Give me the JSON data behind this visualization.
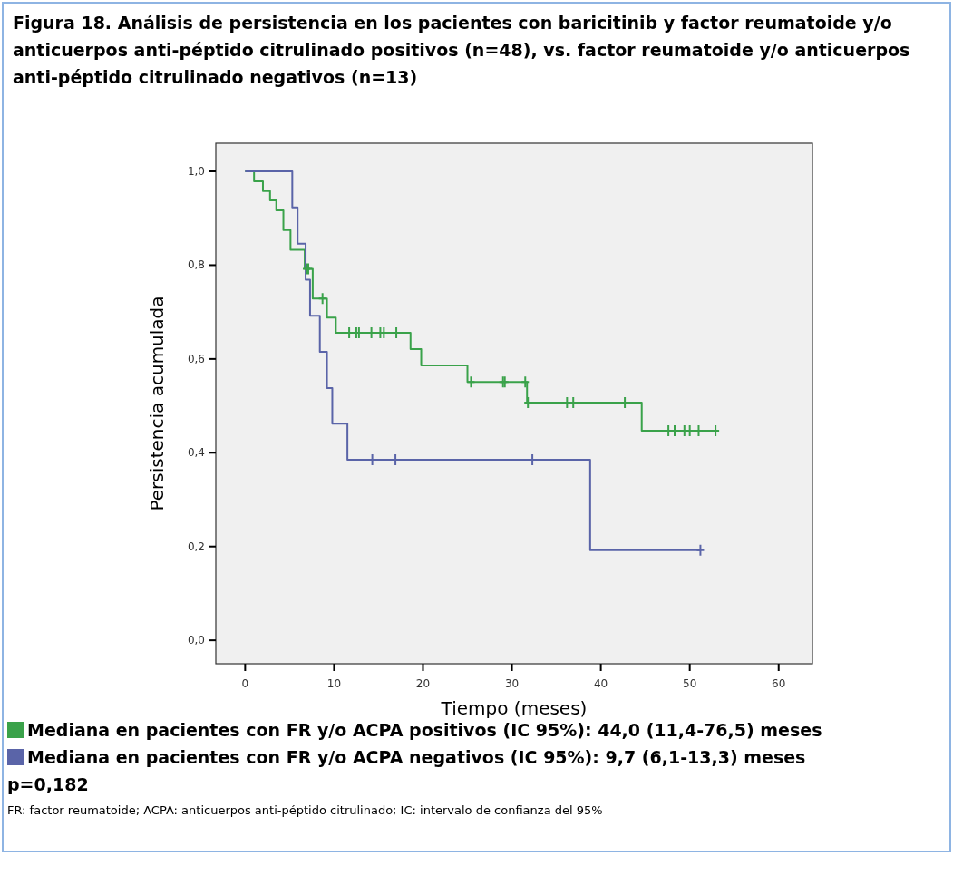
{
  "chart_data": {
    "type": "step",
    "title": "Figura 18. Análisis de persistencia en los pacientes con baricitinib y factor reumatoide y/o anticuerpos anti-péptido citrulinado positivos (n=48), vs. factor reumatoide y/o anticuerpos anti-péptido citrulinado negativos (n=13)",
    "xlabel": "Tiempo (meses)",
    "ylabel": "Persistencia acumulada",
    "xlim": [
      -3.3,
      63.8
    ],
    "ylim": [
      -0.05,
      1.06
    ],
    "xticks": [
      0,
      10,
      20,
      30,
      40,
      50,
      60
    ],
    "yticks": [
      {
        "value": 0,
        "label": "0,0"
      },
      {
        "value": 0.2,
        "label": "0,2"
      },
      {
        "value": 0.4,
        "label": "0,4"
      },
      {
        "value": 0.6,
        "label": "0,6"
      },
      {
        "value": 0.8,
        "label": "0,8"
      },
      {
        "value": 1,
        "label": "1,0"
      }
    ],
    "legend": "bottom",
    "series": [
      {
        "name": "Mediana en pacientes con FR y/o ACPA positivos (IC 95%): 44,0  (11,4-76,5) meses",
        "color": "#3aa24a",
        "x": [
          0,
          1,
          2,
          2.8,
          3.5,
          4.3,
          5.1,
          6.7,
          7.6,
          9.2,
          10.2,
          18.6,
          19.8,
          25.0,
          31.7,
          44.6,
          52.9
        ],
        "values": [
          1,
          0.979,
          0.958,
          0.938,
          0.917,
          0.875,
          0.833,
          0.792,
          0.729,
          0.688,
          0.656,
          0.621,
          0.586,
          0.551,
          0.507,
          0.447,
          0.447
        ]
      },
      {
        "name": "Mediana en pacientes con FR y/o ACPA negativos (IC 95%): 9,7  (6,1-13,3) meses",
        "color": "#5a64a8",
        "x": [
          0,
          5.3,
          5.9,
          6.8,
          7.3,
          8.4,
          9.2,
          9.8,
          11.5,
          38.8,
          51.2
        ],
        "values": [
          1,
          0.923,
          0.846,
          0.769,
          0.692,
          0.615,
          0.538,
          0.462,
          0.385,
          0.192,
          0.192
        ]
      },
      {
        "type": "scatter",
        "marker": "cross",
        "color": "#3aa24a",
        "x": [
          6.9,
          7.1,
          8.7,
          11.7,
          12.5,
          12.8,
          14.2,
          15.2,
          15.6,
          17.0,
          25.4,
          29.0,
          29.2,
          31.5,
          31.8,
          36.2,
          36.9,
          42.7,
          47.6,
          48.3,
          49.4,
          50.0,
          51.0,
          52.9
        ],
        "values": [
          0.792,
          0.792,
          0.729,
          0.656,
          0.656,
          0.656,
          0.656,
          0.656,
          0.656,
          0.656,
          0.551,
          0.551,
          0.551,
          0.551,
          0.507,
          0.507,
          0.507,
          0.507,
          0.447,
          0.447,
          0.447,
          0.447,
          0.447,
          0.447
        ]
      },
      {
        "type": "scatter",
        "marker": "cross",
        "color": "#5a64a8",
        "x": [
          14.3,
          16.9,
          32.3,
          51.2
        ],
        "values": [
          0.385,
          0.385,
          0.385,
          0.192
        ]
      }
    ],
    "annotations": [
      "p=0,182",
      "FR: factor reumatoide; ACPA: anticuerpos anti-péptido citrulinado; IC: intervalo de confianza del 95%"
    ]
  }
}
